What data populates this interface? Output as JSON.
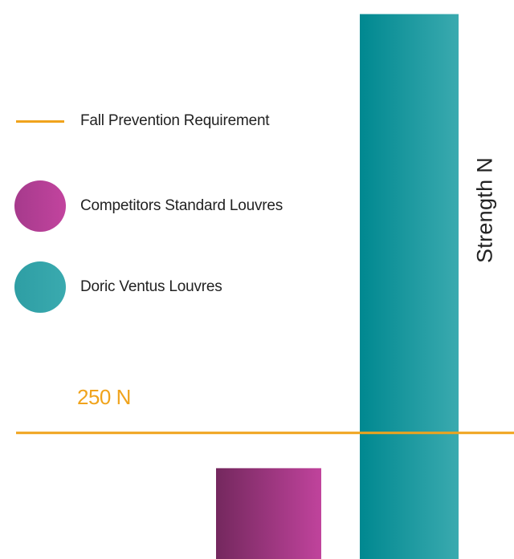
{
  "chart_data": {
    "type": "bar",
    "categories": [
      "Competitors Standard Louvres",
      "Doric Ventus Louvres"
    ],
    "series": [
      {
        "name": "Competitors Standard Louvres",
        "values": [
          180,
          null
        ],
        "color": "#b63f96"
      },
      {
        "name": "Doric Ventus Louvres",
        "values": [
          null,
          1080
        ],
        "color": "#36a4aa"
      }
    ],
    "reference_line": {
      "name": "Fall Prevention Requirement",
      "value": 250,
      "label": "250 N",
      "color": "#f0a31c"
    },
    "ylabel": "Strength N",
    "ylim": [
      0,
      1100
    ],
    "grid": false,
    "legend_placement": "left"
  }
}
